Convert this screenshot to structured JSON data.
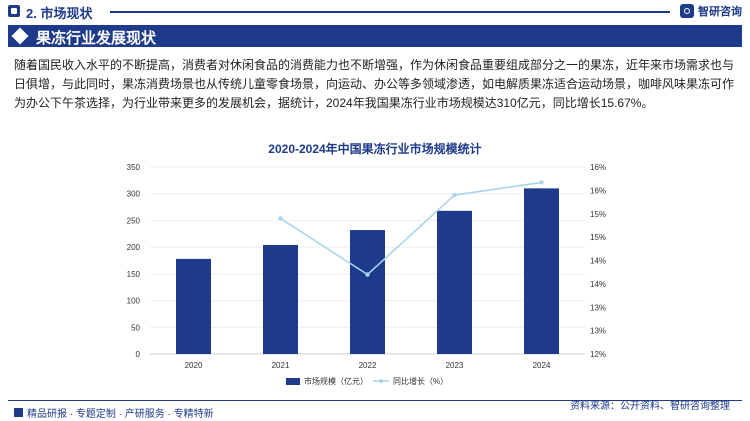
{
  "header": {
    "section_title": "2. 市场现状",
    "brand": "智研咨询"
  },
  "banner": {
    "title": "果冻行业发展现状"
  },
  "paragraph": "随着国民收入水平的不断提高，消费者对休闲食品的消费能力也不断增强，作为休闲食品重要组成部分之一的果冻，近年来市场需求也与日俱增，与此同时，果冻消费场景也从传统儿童零食场景，向运动、办公等多领域渗透，如电解质果冻适合运动场景，咖啡风味果冻可作为办公下午茶选择，为行业带来更多的发展机会，据统计，2024年我国果冻行业市场规模达310亿元，同比增长15.67%。",
  "chart_data": {
    "type": "bar",
    "title": "2020-2024年中国果冻行业市场规模统计",
    "categories": [
      "2020",
      "2021",
      "2022",
      "2023",
      "2024"
    ],
    "series": [
      {
        "name": "市场规模（亿元）",
        "type": "bar",
        "axis": "left",
        "color": "#1e3a8a",
        "values": [
          178,
          204,
          232,
          268,
          310
        ]
      },
      {
        "name": "同比增长（%）",
        "type": "line",
        "axis": "right",
        "color": "#a8d4ec",
        "values": [
          null,
          14.9,
          13.7,
          15.4,
          15.67
        ]
      }
    ],
    "left_axis": {
      "ylim": [
        0,
        350
      ],
      "ticks": [
        "0",
        "50",
        "100",
        "150",
        "200",
        "250",
        "300",
        "350"
      ]
    },
    "right_axis": {
      "ylim": [
        12,
        16
      ],
      "ticks": [
        "12%",
        "13%",
        "13%",
        "14%",
        "14%",
        "15%",
        "15%",
        "16%",
        "16%"
      ]
    },
    "legend_position": "bottom"
  },
  "source": "资料来源：公开资料、智研咨询整理",
  "footer": "精品研报 · 专题定制 · 产研服务 · 专精特新"
}
